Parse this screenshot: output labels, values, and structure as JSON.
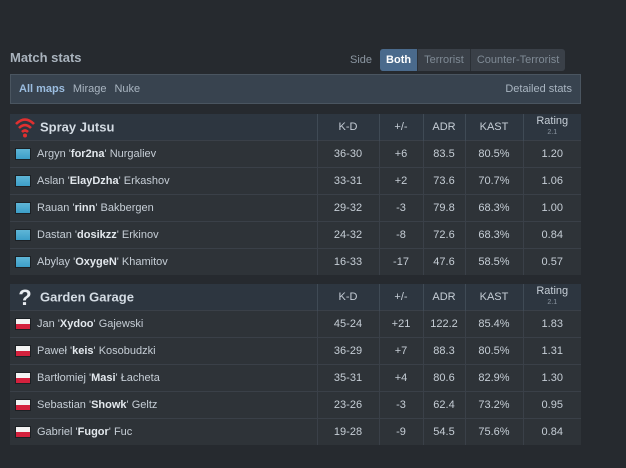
{
  "header": {
    "title": "Match stats"
  },
  "side_filter": {
    "label": "Side",
    "options": [
      "Both",
      "Terrorist",
      "Counter-Terrorist"
    ],
    "selected": "Both"
  },
  "maps": {
    "options": [
      "All maps",
      "Mirage",
      "Nuke"
    ],
    "selected": "All maps",
    "detailed_link": "Detailed stats"
  },
  "columns": {
    "kd": "K-D",
    "diff": "+/-",
    "adr": "ADR",
    "kast": "KAST",
    "rating": "Rating",
    "rating_version": "2.1"
  },
  "teams": [
    {
      "name": "Spray Jutsu",
      "logo_icon": "red-wifi-logo-icon",
      "players": [
        {
          "first": "Argyn",
          "nick": "for2na",
          "last": "Nurgaliev",
          "flag": "kazakhstan-flag-icon",
          "kd": "36-30",
          "diff": "+6",
          "adr": "83.5",
          "kast": "80.5%",
          "rating": "1.20"
        },
        {
          "first": "Aslan",
          "nick": "ElayDzha",
          "last": "Erkashov",
          "flag": "kazakhstan-flag-icon",
          "kd": "33-31",
          "diff": "+2",
          "adr": "73.6",
          "kast": "70.7%",
          "rating": "1.06"
        },
        {
          "first": "Rauan",
          "nick": "rinn",
          "last": "Bakbergen",
          "flag": "kazakhstan-flag-icon",
          "kd": "29-32",
          "diff": "-3",
          "adr": "79.8",
          "kast": "68.3%",
          "rating": "1.00"
        },
        {
          "first": "Dastan",
          "nick": "dosikzz",
          "last": "Erkinov",
          "flag": "kazakhstan-flag-icon",
          "kd": "24-32",
          "diff": "-8",
          "adr": "72.6",
          "kast": "68.3%",
          "rating": "0.84"
        },
        {
          "first": "Abylay",
          "nick": "OxygeN",
          "last": "Khamitov",
          "flag": "kazakhstan-flag-icon",
          "kd": "16-33",
          "diff": "-17",
          "adr": "47.6",
          "kast": "58.5%",
          "rating": "0.57"
        }
      ]
    },
    {
      "name": "Garden Garage",
      "logo_icon": "question-mark-logo-icon",
      "players": [
        {
          "first": "Jan",
          "nick": "Xydoo",
          "last": "Gajewski",
          "flag": "poland-flag-icon",
          "kd": "45-24",
          "diff": "+21",
          "adr": "122.2",
          "kast": "85.4%",
          "rating": "1.83"
        },
        {
          "first": "Paweł",
          "nick": "keis",
          "last": "Kosobudzki",
          "flag": "poland-flag-icon",
          "kd": "36-29",
          "diff": "+7",
          "adr": "88.3",
          "kast": "80.5%",
          "rating": "1.31"
        },
        {
          "first": "Bartłomiej",
          "nick": "Masi",
          "last": "Łacheta",
          "flag": "poland-flag-icon",
          "kd": "35-31",
          "diff": "+4",
          "adr": "80.6",
          "kast": "82.9%",
          "rating": "1.30"
        },
        {
          "first": "Sebastian",
          "nick": "Showk",
          "last": "Geltz",
          "flag": "poland-flag-icon",
          "kd": "23-26",
          "diff": "-3",
          "adr": "62.4",
          "kast": "73.2%",
          "rating": "0.95"
        },
        {
          "first": "Gabriel",
          "nick": "Fugor",
          "last": "Fuc",
          "flag": "poland-flag-icon",
          "kd": "19-28",
          "diff": "-9",
          "adr": "54.5",
          "kast": "75.6%",
          "rating": "0.84"
        }
      ]
    }
  ]
}
